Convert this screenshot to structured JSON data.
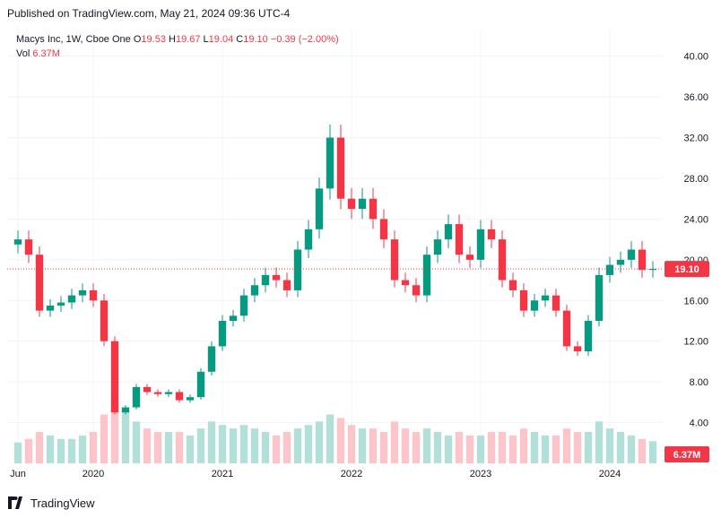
{
  "publish_line": "Published on TradingView.com, May 21, 2024 09:36 UTC-4",
  "legend": {
    "symbol": "Macys Inc, 1W, Cboe One",
    "o_label": "O",
    "o_value": "19.53",
    "h_label": "H",
    "h_value": "19.67",
    "l_label": "L",
    "l_value": "19.04",
    "c_label": "C",
    "c_value": "19.10",
    "change": "−0.39 (−2.00%)",
    "vol_label": "Vol",
    "vol_value": "6.37M"
  },
  "brand": "TradingView",
  "colors": {
    "up": "#089981",
    "down": "#f23645",
    "grid": "#f0f3fa",
    "text": "#131722",
    "volume_up": "#b2dfd8",
    "volume_down": "#fbc5c9"
  },
  "chart_data": {
    "type": "candlestick",
    "title": "Macys Inc, 1W, Cboe One",
    "ylim": [
      0,
      42
    ],
    "y_ticks": [
      "40.00",
      "36.00",
      "32.00",
      "28.00",
      "24.00",
      "20.00",
      "16.00",
      "12.00",
      "8.00",
      "4.00"
    ],
    "x_ticks": [
      "Jun",
      "2020",
      "2021",
      "2022",
      "2023",
      "2024"
    ],
    "last_price_label": "19.10",
    "last_volume_label": "6.37M",
    "x": [
      "2019-06",
      "2019-07",
      "2019-08",
      "2019-09",
      "2019-10",
      "2019-11",
      "2019-12",
      "2020-01",
      "2020-02",
      "2020-03",
      "2020-04",
      "2020-05",
      "2020-06",
      "2020-07",
      "2020-08",
      "2020-09",
      "2020-10",
      "2020-11",
      "2020-12",
      "2021-01",
      "2021-02",
      "2021-03",
      "2021-04",
      "2021-05",
      "2021-06",
      "2021-07",
      "2021-08",
      "2021-09",
      "2021-10",
      "2021-11",
      "2021-12",
      "2022-01",
      "2022-02",
      "2022-03",
      "2022-04",
      "2022-05",
      "2022-06",
      "2022-07",
      "2022-08",
      "2022-09",
      "2022-10",
      "2022-11",
      "2022-12",
      "2023-01",
      "2023-02",
      "2023-03",
      "2023-04",
      "2023-05",
      "2023-06",
      "2023-07",
      "2023-08",
      "2023-09",
      "2023-10",
      "2023-11",
      "2023-12",
      "2024-01",
      "2024-02",
      "2024-03",
      "2024-04",
      "2024-05"
    ],
    "close": [
      22.0,
      20.5,
      15.0,
      15.5,
      15.8,
      16.5,
      17.0,
      16.0,
      12.0,
      5.0,
      5.5,
      7.5,
      7.0,
      6.8,
      7.0,
      6.2,
      6.5,
      9.0,
      11.5,
      14.0,
      14.5,
      16.5,
      17.5,
      18.5,
      18.0,
      17.0,
      21.0,
      23.0,
      27.0,
      32.0,
      26.0,
      25.0,
      26.0,
      24.0,
      22.0,
      18.0,
      17.5,
      16.5,
      20.5,
      22.0,
      23.5,
      20.5,
      20.0,
      23.0,
      22.0,
      18.0,
      17.0,
      15.0,
      16.0,
      16.5,
      15.0,
      11.5,
      11.0,
      14.0,
      18.5,
      19.5,
      20.0,
      21.0,
      19.0,
      19.1
    ],
    "volume_millions": [
      6,
      7,
      9,
      8,
      7,
      7,
      8,
      9,
      14,
      18,
      15,
      12,
      10,
      9,
      9,
      9,
      8,
      10,
      12,
      11,
      10,
      11,
      10,
      9,
      8,
      9,
      10,
      11,
      12,
      14,
      13,
      11,
      10,
      10,
      9,
      12,
      10,
      9,
      10,
      9,
      8,
      9,
      8,
      8,
      9,
      9,
      8,
      10,
      9,
      8,
      8,
      10,
      9,
      9,
      12,
      10,
      9,
      8,
      7,
      6.37
    ]
  }
}
